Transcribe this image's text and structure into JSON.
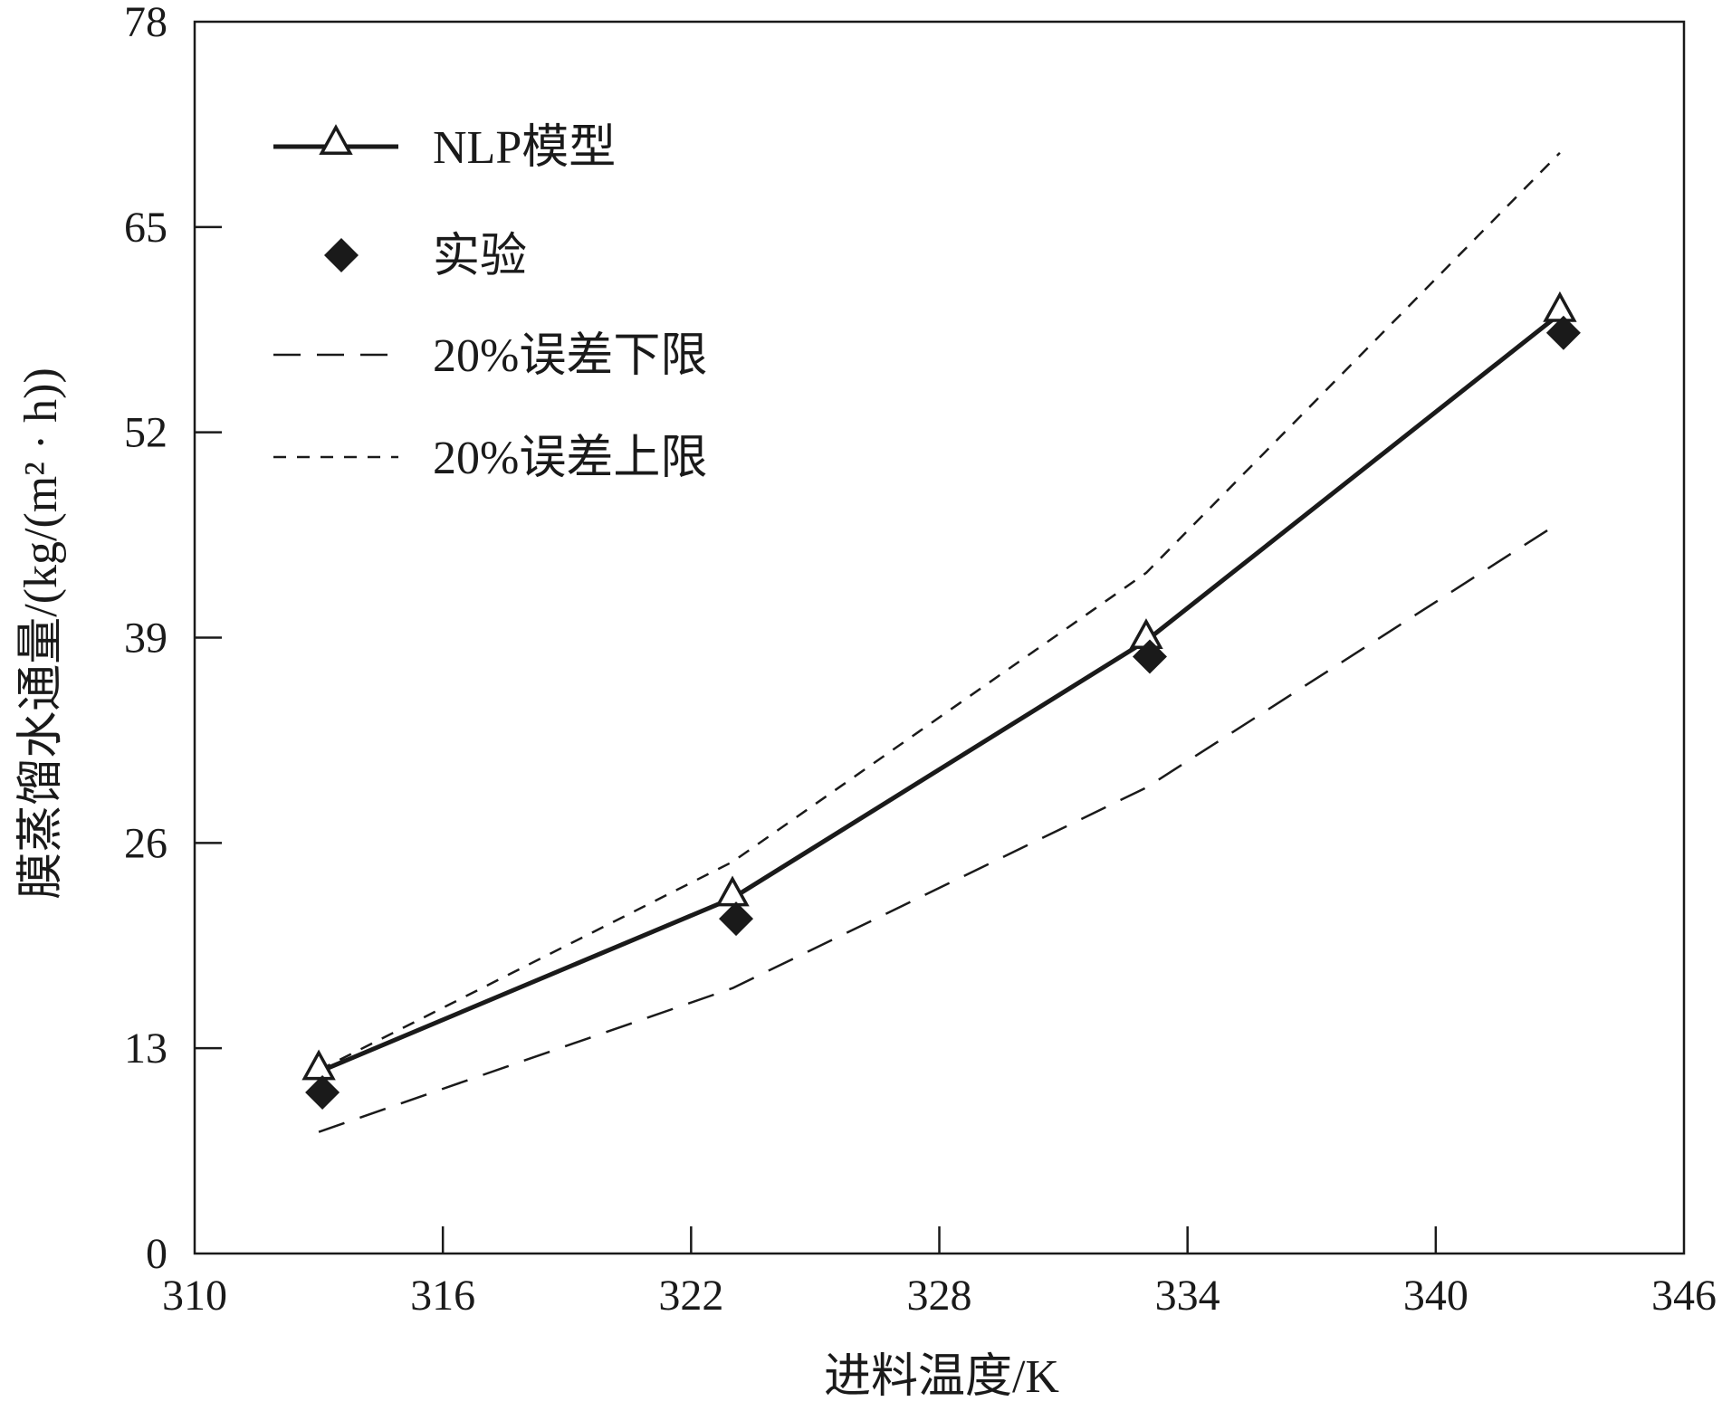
{
  "chart_data": {
    "type": "line",
    "xlabel": "进料温度/K",
    "ylabel": "膜蒸馏水通量/(kg/(m² · h))",
    "xlim": [
      310,
      346
    ],
    "ylim": [
      0,
      78
    ],
    "xticks": [
      310,
      316,
      322,
      328,
      334,
      340,
      346
    ],
    "yticks": [
      0,
      13,
      26,
      39,
      52,
      65,
      78
    ],
    "grid": false,
    "legend_position": "top-left",
    "series": [
      {
        "name": "NLP模型",
        "style": "solid-triangle",
        "x": [
          313,
          323,
          333,
          343
        ],
        "y": [
          11.5,
          22.5,
          38.8,
          59.5
        ]
      },
      {
        "name": "实验",
        "style": "diamond-markers",
        "x": [
          313,
          323,
          333,
          343
        ],
        "y": [
          10.2,
          21.2,
          37.8,
          58.3
        ]
      },
      {
        "name": "20%误差下限",
        "style": "long-dash",
        "x": [
          313,
          323,
          333,
          343
        ],
        "y": [
          7.7,
          16.8,
          29.5,
          46.3
        ]
      },
      {
        "name": "20%误差上限",
        "style": "short-dash",
        "x": [
          313,
          323,
          333,
          343
        ],
        "y": [
          11.6,
          24.8,
          43.1,
          69.7
        ]
      }
    ]
  },
  "colors": {
    "ink": "#1a1a1a",
    "background": "#ffffff"
  }
}
